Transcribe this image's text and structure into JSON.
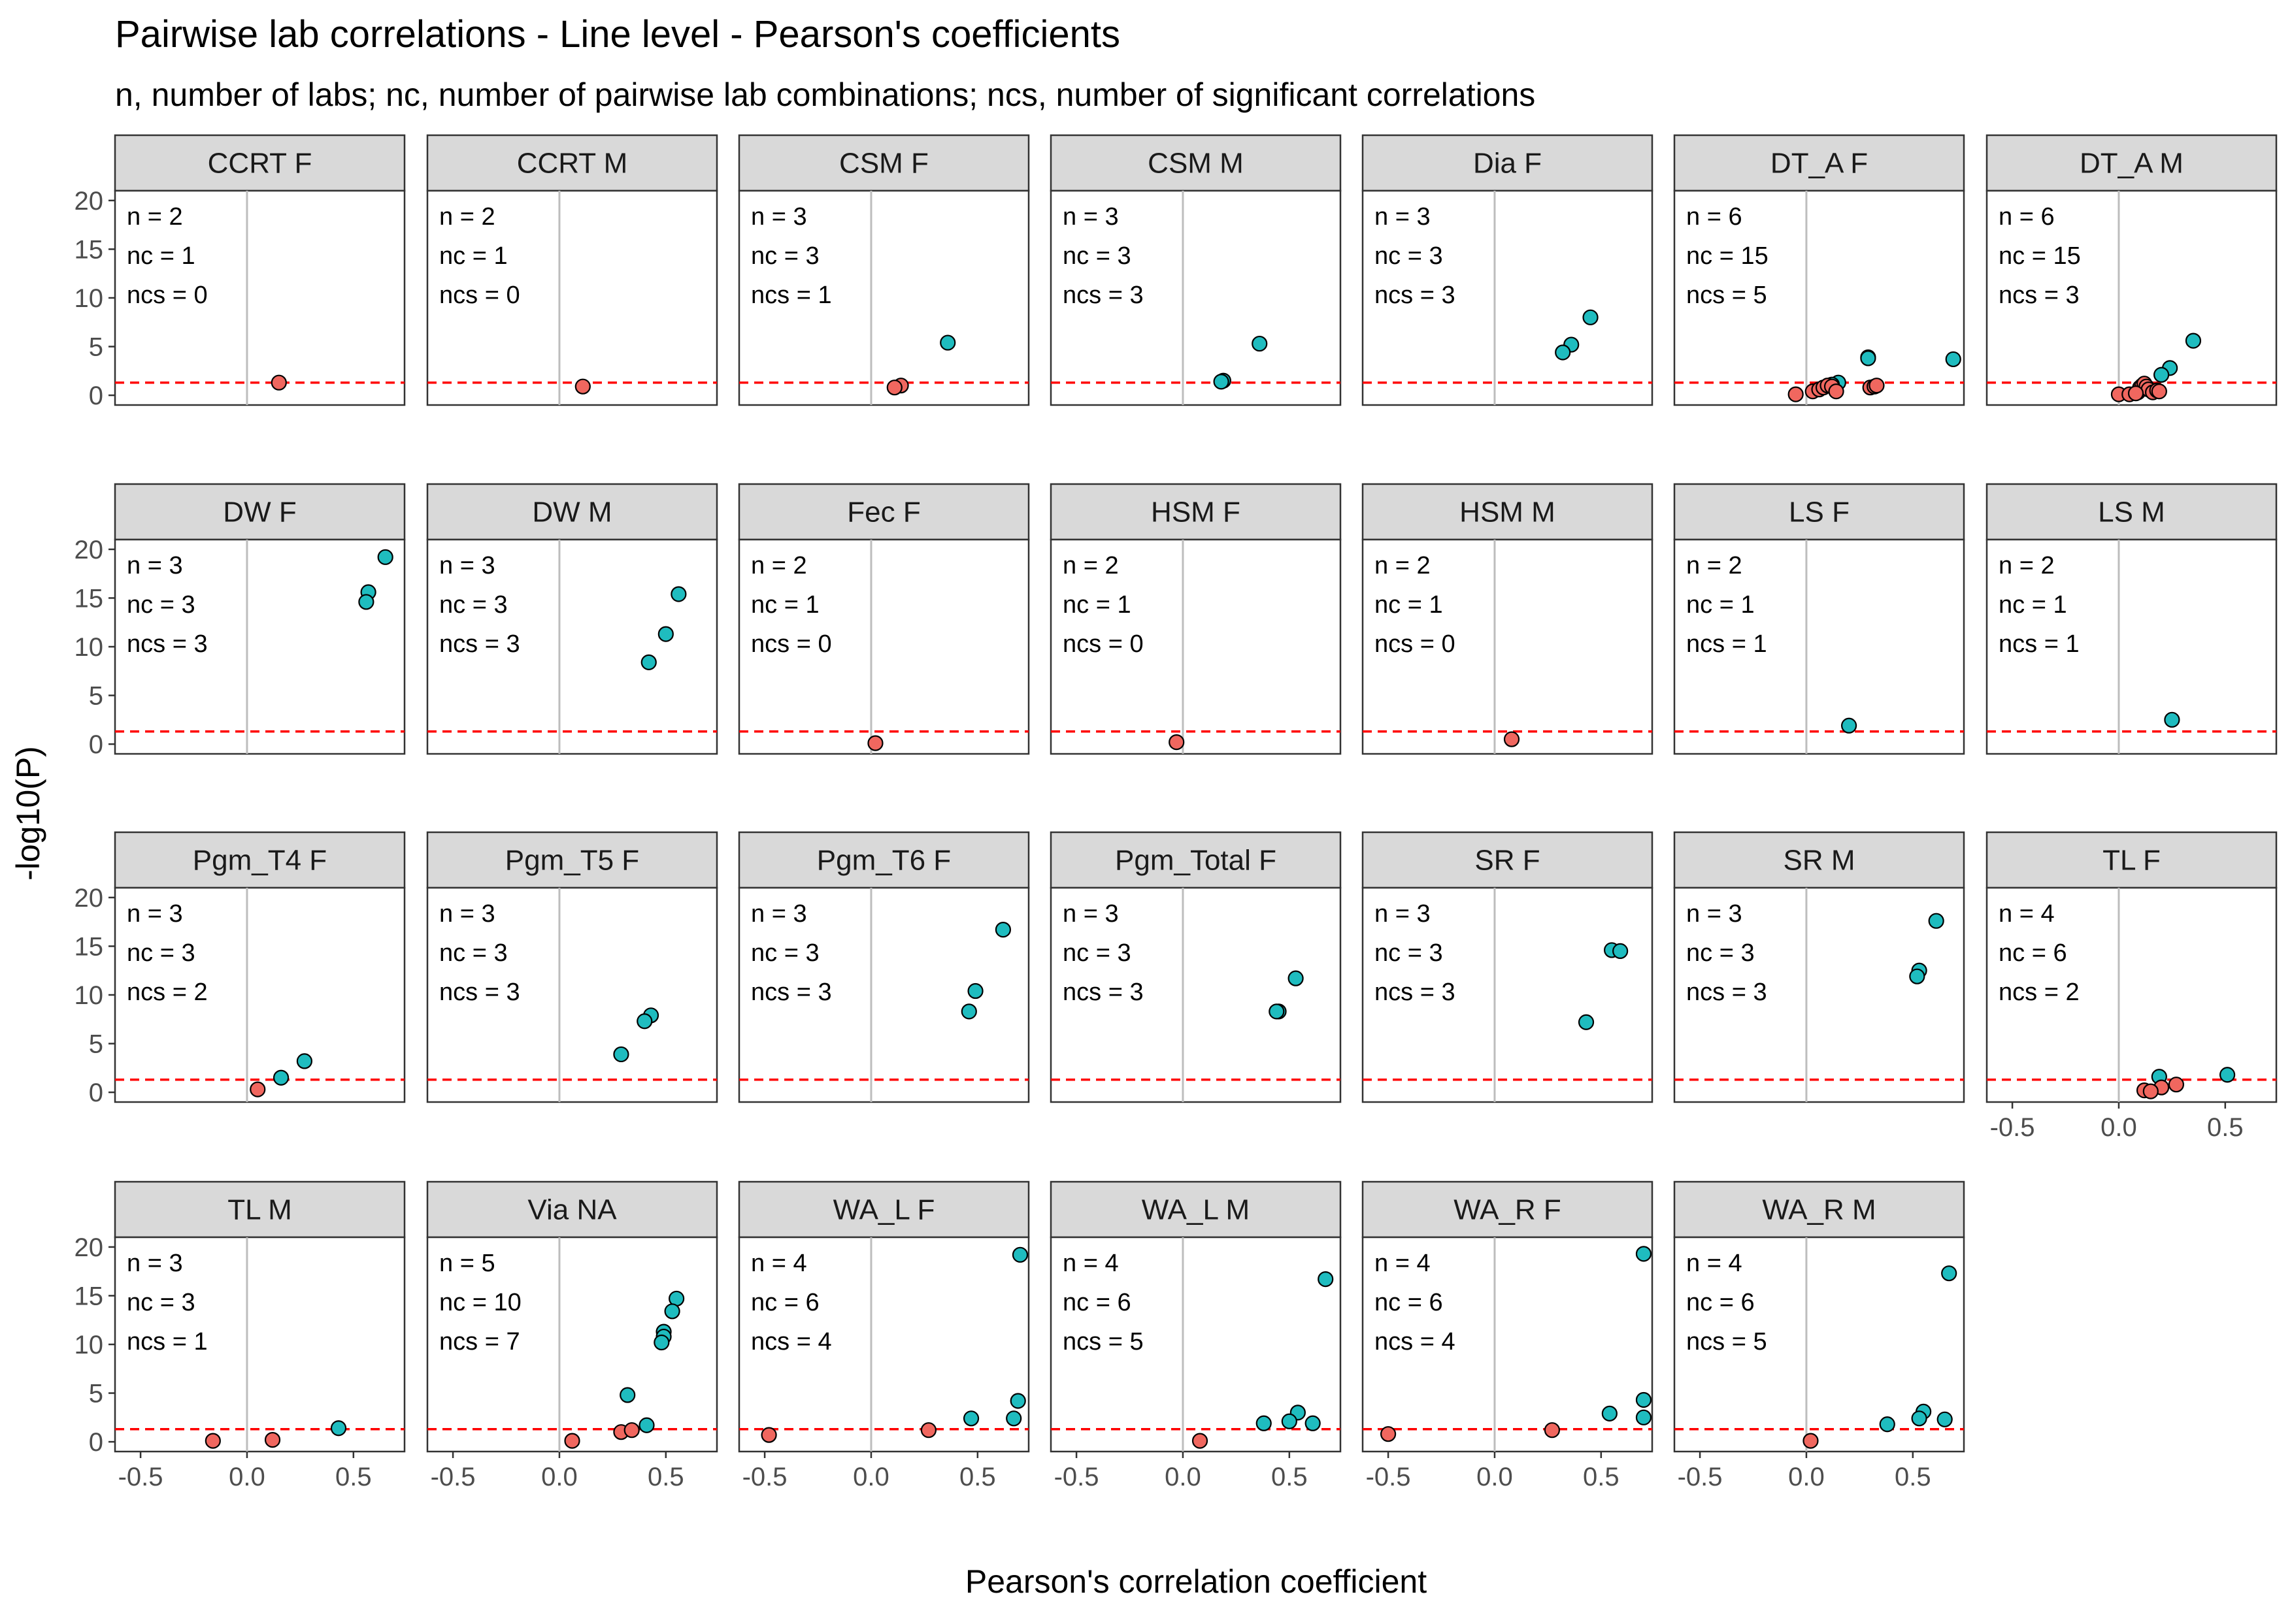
{
  "chart_data": {
    "type": "scatter",
    "title": "Pairwise lab correlations - Line level - Pearson's coefficients",
    "subtitle": "n, number of labs; nc, number of pairwise lab combinations; ncs, number of significant correlations",
    "xlabel": "Pearson's correlation coefficient",
    "ylabel": "-log10(P)",
    "xlim": [
      -0.62,
      0.74
    ],
    "ylim": [
      -1.0,
      21.0
    ],
    "x_ticks": [
      -0.5,
      0.0,
      0.5
    ],
    "x_tick_labels": [
      "-0.5",
      "0.0",
      "0.5"
    ],
    "y_ticks": [
      0,
      5,
      10,
      15,
      20
    ],
    "y_tick_labels": [
      "0",
      "5",
      "10",
      "15",
      "20"
    ],
    "threshold": 1.301,
    "grid": false,
    "colors": {
      "significant": "#1fbcbf",
      "nonsignificant": "#f0675f",
      "threshold_line": "#ff0000",
      "zero_line": "#bdbdbd",
      "strip_fill": "#d9d9d9"
    },
    "facets": [
      {
        "label": "CCRT F",
        "n": "n = 2",
        "nc": "nc = 1",
        "ncs": "ncs = 0",
        "points": [
          {
            "x": 0.15,
            "y": 1.3,
            "sig": false
          }
        ]
      },
      {
        "label": "CCRT M",
        "n": "n = 2",
        "nc": "nc = 1",
        "ncs": "ncs = 0",
        "points": [
          {
            "x": 0.11,
            "y": 0.9,
            "sig": false
          }
        ]
      },
      {
        "label": "CSM F",
        "n": "n = 3",
        "nc": "nc = 3",
        "ncs": "ncs = 1",
        "points": [
          {
            "x": 0.36,
            "y": 5.4,
            "sig": true
          },
          {
            "x": 0.14,
            "y": 1.0,
            "sig": false
          },
          {
            "x": 0.11,
            "y": 0.8,
            "sig": false
          }
        ]
      },
      {
        "label": "CSM M",
        "n": "n = 3",
        "nc": "nc = 3",
        "ncs": "ncs = 3",
        "points": [
          {
            "x": 0.36,
            "y": 5.3,
            "sig": true
          },
          {
            "x": 0.19,
            "y": 1.5,
            "sig": true
          },
          {
            "x": 0.18,
            "y": 1.4,
            "sig": true
          }
        ]
      },
      {
        "label": "Dia F",
        "n": "n = 3",
        "nc": "nc = 3",
        "ncs": "ncs = 3",
        "points": [
          {
            "x": 0.45,
            "y": 8.0,
            "sig": true
          },
          {
            "x": 0.36,
            "y": 5.2,
            "sig": true
          },
          {
            "x": 0.32,
            "y": 4.4,
            "sig": true
          }
        ]
      },
      {
        "label": "DT_A F",
        "n": "n = 6",
        "nc": "nc = 15",
        "ncs": "ncs = 5",
        "points": [
          {
            "x": 0.29,
            "y": 3.9,
            "sig": true
          },
          {
            "x": 0.29,
            "y": 3.8,
            "sig": true
          },
          {
            "x": 0.69,
            "y": 3.7,
            "sig": true
          },
          {
            "x": 0.15,
            "y": 1.3,
            "sig": true
          },
          {
            "x": 0.12,
            "y": 1.1,
            "sig": true
          },
          {
            "x": -0.05,
            "y": 0.1,
            "sig": false
          },
          {
            "x": 0.03,
            "y": 0.4,
            "sig": false
          },
          {
            "x": 0.06,
            "y": 0.6,
            "sig": false
          },
          {
            "x": 0.08,
            "y": 0.8,
            "sig": false
          },
          {
            "x": 0.1,
            "y": 1.0,
            "sig": false
          },
          {
            "x": 0.12,
            "y": 0.9,
            "sig": false
          },
          {
            "x": 0.14,
            "y": 0.4,
            "sig": false
          },
          {
            "x": 0.3,
            "y": 0.8,
            "sig": false
          },
          {
            "x": 0.32,
            "y": 0.9,
            "sig": false
          },
          {
            "x": 0.33,
            "y": 1.0,
            "sig": false
          }
        ]
      },
      {
        "label": "DT_A M",
        "n": "n = 6",
        "nc": "nc = 15",
        "ncs": "ncs = 3",
        "points": [
          {
            "x": 0.35,
            "y": 5.6,
            "sig": true
          },
          {
            "x": 0.24,
            "y": 2.8,
            "sig": true
          },
          {
            "x": 0.2,
            "y": 2.1,
            "sig": true
          },
          {
            "x": 0.0,
            "y": 0.1,
            "sig": false
          },
          {
            "x": 0.05,
            "y": 0.1,
            "sig": false
          },
          {
            "x": 0.09,
            "y": 0.3,
            "sig": false
          },
          {
            "x": 0.1,
            "y": 0.8,
            "sig": false
          },
          {
            "x": 0.11,
            "y": 1.0,
            "sig": false
          },
          {
            "x": 0.12,
            "y": 1.2,
            "sig": false
          },
          {
            "x": 0.13,
            "y": 0.9,
            "sig": false
          },
          {
            "x": 0.14,
            "y": 0.6,
            "sig": false
          },
          {
            "x": 0.16,
            "y": 0.3,
            "sig": false
          },
          {
            "x": 0.18,
            "y": 0.5,
            "sig": false
          },
          {
            "x": 0.19,
            "y": 0.4,
            "sig": false
          },
          {
            "x": 0.08,
            "y": 0.2,
            "sig": false
          }
        ]
      },
      {
        "label": "DW F",
        "n": "n = 3",
        "nc": "nc = 3",
        "ncs": "ncs = 3",
        "points": [
          {
            "x": 0.65,
            "y": 19.2,
            "sig": true
          },
          {
            "x": 0.57,
            "y": 15.6,
            "sig": true
          },
          {
            "x": 0.56,
            "y": 14.6,
            "sig": true
          }
        ]
      },
      {
        "label": "DW M",
        "n": "n = 3",
        "nc": "nc = 3",
        "ncs": "ncs = 3",
        "points": [
          {
            "x": 0.56,
            "y": 15.4,
            "sig": true
          },
          {
            "x": 0.5,
            "y": 11.3,
            "sig": true
          },
          {
            "x": 0.42,
            "y": 8.4,
            "sig": true
          }
        ]
      },
      {
        "label": "Fec F",
        "n": "n = 2",
        "nc": "nc = 1",
        "ncs": "ncs = 0",
        "points": [
          {
            "x": 0.02,
            "y": 0.1,
            "sig": false
          }
        ]
      },
      {
        "label": "HSM F",
        "n": "n = 2",
        "nc": "nc = 1",
        "ncs": "ncs = 0",
        "points": [
          {
            "x": -0.03,
            "y": 0.2,
            "sig": false
          }
        ]
      },
      {
        "label": "HSM M",
        "n": "n = 2",
        "nc": "nc = 1",
        "ncs": "ncs = 0",
        "points": [
          {
            "x": 0.08,
            "y": 0.5,
            "sig": false
          }
        ]
      },
      {
        "label": "LS F",
        "n": "n = 2",
        "nc": "nc = 1",
        "ncs": "ncs = 1",
        "points": [
          {
            "x": 0.2,
            "y": 1.9,
            "sig": true
          }
        ]
      },
      {
        "label": "LS M",
        "n": "n = 2",
        "nc": "nc = 1",
        "ncs": "ncs = 1",
        "points": [
          {
            "x": 0.25,
            "y": 2.5,
            "sig": true
          }
        ]
      },
      {
        "label": "Pgm_T4 F",
        "n": "n = 3",
        "nc": "nc = 3",
        "ncs": "ncs = 2",
        "points": [
          {
            "x": 0.27,
            "y": 3.2,
            "sig": true
          },
          {
            "x": 0.16,
            "y": 1.5,
            "sig": true
          },
          {
            "x": 0.05,
            "y": 0.3,
            "sig": false
          }
        ]
      },
      {
        "label": "Pgm_T5 F",
        "n": "n = 3",
        "nc": "nc = 3",
        "ncs": "ncs = 3",
        "points": [
          {
            "x": 0.43,
            "y": 7.9,
            "sig": true
          },
          {
            "x": 0.4,
            "y": 7.3,
            "sig": true
          },
          {
            "x": 0.29,
            "y": 3.9,
            "sig": true
          }
        ]
      },
      {
        "label": "Pgm_T6 F",
        "n": "n = 3",
        "nc": "nc = 3",
        "ncs": "ncs = 3",
        "points": [
          {
            "x": 0.62,
            "y": 16.7,
            "sig": true
          },
          {
            "x": 0.49,
            "y": 10.4,
            "sig": true
          },
          {
            "x": 0.46,
            "y": 8.3,
            "sig": true
          }
        ]
      },
      {
        "label": "Pgm_Total F",
        "n": "n = 3",
        "nc": "nc = 3",
        "ncs": "ncs = 3",
        "points": [
          {
            "x": 0.53,
            "y": 11.7,
            "sig": true
          },
          {
            "x": 0.45,
            "y": 8.3,
            "sig": true
          },
          {
            "x": 0.44,
            "y": 8.3,
            "sig": true
          }
        ]
      },
      {
        "label": "SR F",
        "n": "n = 3",
        "nc": "nc = 3",
        "ncs": "ncs = 3",
        "points": [
          {
            "x": 0.55,
            "y": 14.6,
            "sig": true
          },
          {
            "x": 0.59,
            "y": 14.5,
            "sig": true
          },
          {
            "x": 0.43,
            "y": 7.2,
            "sig": true
          }
        ]
      },
      {
        "label": "SR M",
        "n": "n = 3",
        "nc": "nc = 3",
        "ncs": "ncs = 3",
        "points": [
          {
            "x": 0.61,
            "y": 17.6,
            "sig": true
          },
          {
            "x": 0.53,
            "y": 12.5,
            "sig": true
          },
          {
            "x": 0.52,
            "y": 11.9,
            "sig": true
          }
        ]
      },
      {
        "label": "TL F",
        "n": "n = 4",
        "nc": "nc = 6",
        "ncs": "ncs = 2",
        "points": [
          {
            "x": 0.51,
            "y": 1.8,
            "sig": true
          },
          {
            "x": 0.19,
            "y": 1.6,
            "sig": true
          },
          {
            "x": 0.27,
            "y": 0.8,
            "sig": false
          },
          {
            "x": 0.2,
            "y": 0.5,
            "sig": false
          },
          {
            "x": 0.12,
            "y": 0.2,
            "sig": false
          },
          {
            "x": 0.15,
            "y": 0.1,
            "sig": false
          }
        ]
      },
      {
        "label": "TL M",
        "n": "n = 3",
        "nc": "nc = 3",
        "ncs": "ncs = 1",
        "points": [
          {
            "x": 0.43,
            "y": 1.4,
            "sig": true
          },
          {
            "x": -0.16,
            "y": 0.1,
            "sig": false
          },
          {
            "x": 0.12,
            "y": 0.2,
            "sig": false
          }
        ]
      },
      {
        "label": "Via NA",
        "n": "n = 5",
        "nc": "nc = 10",
        "ncs": "ncs = 7",
        "points": [
          {
            "x": 0.55,
            "y": 14.7,
            "sig": true
          },
          {
            "x": 0.53,
            "y": 13.4,
            "sig": true
          },
          {
            "x": 0.49,
            "y": 11.3,
            "sig": true
          },
          {
            "x": 0.49,
            "y": 10.8,
            "sig": true
          },
          {
            "x": 0.48,
            "y": 10.2,
            "sig": true
          },
          {
            "x": 0.32,
            "y": 4.8,
            "sig": true
          },
          {
            "x": 0.41,
            "y": 1.7,
            "sig": true
          },
          {
            "x": 0.06,
            "y": 0.1,
            "sig": false
          },
          {
            "x": 0.29,
            "y": 1.0,
            "sig": false
          },
          {
            "x": 0.34,
            "y": 1.2,
            "sig": false
          }
        ]
      },
      {
        "label": "WA_L F",
        "n": "n = 4",
        "nc": "nc = 6",
        "ncs": "ncs = 4",
        "points": [
          {
            "x": 0.7,
            "y": 19.2,
            "sig": true
          },
          {
            "x": 0.69,
            "y": 4.2,
            "sig": true
          },
          {
            "x": 0.47,
            "y": 2.4,
            "sig": true
          },
          {
            "x": 0.67,
            "y": 2.4,
            "sig": true
          },
          {
            "x": -0.48,
            "y": 0.7,
            "sig": false
          },
          {
            "x": 0.27,
            "y": 1.2,
            "sig": false
          }
        ]
      },
      {
        "label": "WA_L M",
        "n": "n = 4",
        "nc": "nc = 6",
        "ncs": "ncs = 5",
        "points": [
          {
            "x": 0.67,
            "y": 16.7,
            "sig": true
          },
          {
            "x": 0.54,
            "y": 3.0,
            "sig": true
          },
          {
            "x": 0.5,
            "y": 2.1,
            "sig": true
          },
          {
            "x": 0.38,
            "y": 1.9,
            "sig": true
          },
          {
            "x": 0.61,
            "y": 1.9,
            "sig": true
          },
          {
            "x": 0.08,
            "y": 0.1,
            "sig": false
          }
        ]
      },
      {
        "label": "WA_R F",
        "n": "n = 4",
        "nc": "nc = 6",
        "ncs": "ncs = 4",
        "points": [
          {
            "x": 0.7,
            "y": 19.3,
            "sig": true
          },
          {
            "x": 0.7,
            "y": 4.3,
            "sig": true
          },
          {
            "x": 0.54,
            "y": 2.9,
            "sig": true
          },
          {
            "x": 0.7,
            "y": 2.5,
            "sig": true
          },
          {
            "x": -0.5,
            "y": 0.8,
            "sig": false
          },
          {
            "x": 0.27,
            "y": 1.2,
            "sig": false
          }
        ]
      },
      {
        "label": "WA_R M",
        "n": "n = 4",
        "nc": "nc = 6",
        "ncs": "ncs = 5",
        "points": [
          {
            "x": 0.67,
            "y": 17.3,
            "sig": true
          },
          {
            "x": 0.55,
            "y": 3.1,
            "sig": true
          },
          {
            "x": 0.53,
            "y": 2.4,
            "sig": true
          },
          {
            "x": 0.65,
            "y": 2.3,
            "sig": true
          },
          {
            "x": 0.38,
            "y": 1.8,
            "sig": true
          },
          {
            "x": 0.02,
            "y": 0.1,
            "sig": false
          }
        ]
      }
    ]
  }
}
